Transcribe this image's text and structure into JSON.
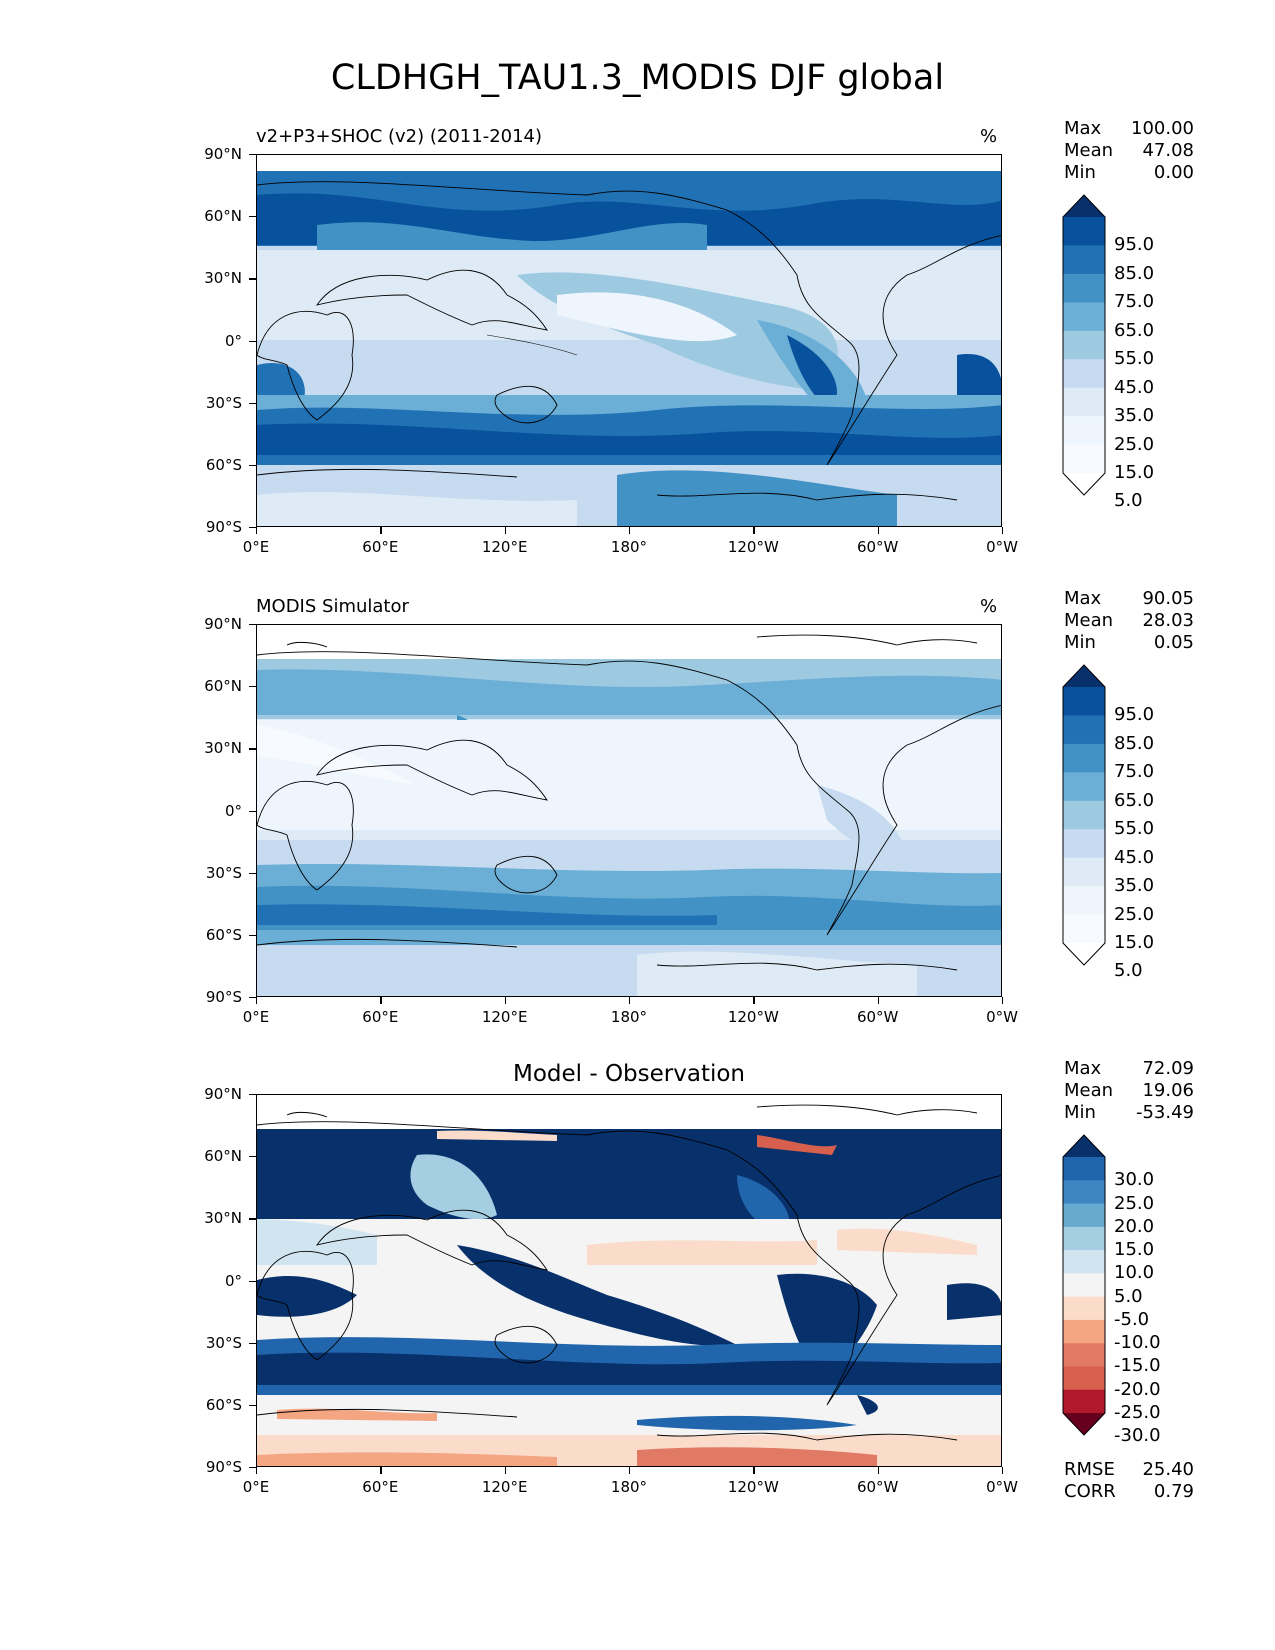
{
  "title": "CLDHGH_TAU1.3_MODIS DJF global",
  "yticks": [
    "90°N",
    "60°N",
    "30°N",
    "0°",
    "30°S",
    "60°S",
    "90°S"
  ],
  "xticks": [
    "0°E",
    "60°E",
    "120°E",
    "180°",
    "120°W",
    "60°W",
    "0°W"
  ],
  "panels": [
    {
      "title": "v2+P3+SHOC (v2) (2011-2014)",
      "units": "%",
      "stats": {
        "max_label": "Max",
        "max": "100.00",
        "mean_label": "Mean",
        "mean": "47.08",
        "min_label": "Min",
        "min": "0.00"
      },
      "colorbar": {
        "labels": [
          "95.0",
          "85.0",
          "75.0",
          "65.0",
          "55.0",
          "45.0",
          "35.0",
          "25.0",
          "15.0",
          "5.0"
        ],
        "colors": [
          "#08306b",
          "#08519c",
          "#2171b5",
          "#4292c6",
          "#6baed6",
          "#9ecae1",
          "#c6dbef",
          "#deebf7",
          "#eef5fc",
          "#f7fbff",
          "#ffffff"
        ]
      }
    },
    {
      "title": "MODIS Simulator",
      "units": "%",
      "stats": {
        "max_label": "Max",
        "max": "90.05",
        "mean_label": "Mean",
        "mean": "28.03",
        "min_label": "Min",
        "min": "0.05"
      },
      "colorbar": {
        "labels": [
          "95.0",
          "85.0",
          "75.0",
          "65.0",
          "55.0",
          "45.0",
          "35.0",
          "25.0",
          "15.0",
          "5.0"
        ],
        "colors": [
          "#08306b",
          "#08519c",
          "#2171b5",
          "#4292c6",
          "#6baed6",
          "#9ecae1",
          "#c6dbef",
          "#deebf7",
          "#eef5fc",
          "#f7fbff",
          "#ffffff"
        ]
      }
    },
    {
      "title": "Model - Observation",
      "units": "",
      "stats": {
        "max_label": "Max",
        "max": "72.09",
        "mean_label": "Mean",
        "mean": "19.06",
        "min_label": "Min",
        "min": "-53.49"
      },
      "colorbar": {
        "labels": [
          "30.0",
          "25.0",
          "20.0",
          "15.0",
          "10.0",
          "5.0",
          "-5.0",
          "-10.0",
          "-15.0",
          "-20.0",
          "-25.0",
          "-30.0"
        ],
        "colors": [
          "#08306b",
          "#2166ac",
          "#3d86c1",
          "#67a9cf",
          "#a6cee3",
          "#d1e5f0",
          "#f4f4f4",
          "#fbdccb",
          "#f4a582",
          "#e07a65",
          "#d6604d",
          "#b2182b",
          "#67001f"
        ]
      },
      "extra": {
        "rmse_label": "RMSE",
        "rmse": "25.40",
        "corr_label": "CORR",
        "corr": "0.79"
      }
    }
  ]
}
